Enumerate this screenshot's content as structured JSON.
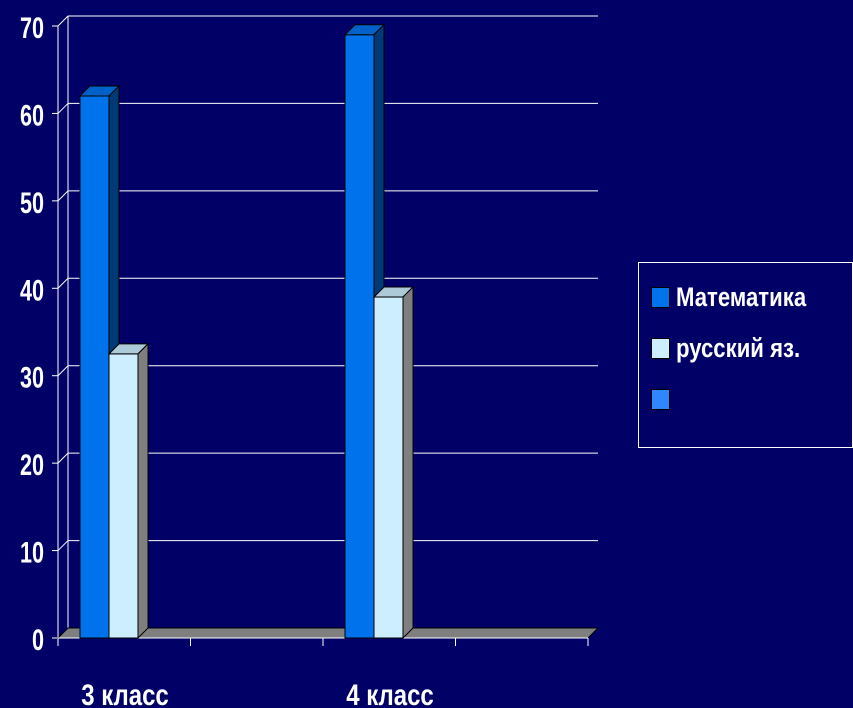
{
  "chart_data": {
    "type": "bar",
    "title": "",
    "xlabel": "",
    "ylabel": "",
    "categories": [
      "3 класс",
      "4 класс"
    ],
    "series": [
      {
        "name": "Математика",
        "values": [
          62,
          69
        ],
        "color": "#0073ec"
      },
      {
        "name": "русский яз.",
        "values": [
          32.5,
          39
        ],
        "color": "#cceeff"
      },
      {
        "name": "",
        "values": [
          0,
          0
        ],
        "color": "#2f86ff"
      }
    ],
    "ylim": [
      0,
      70
    ],
    "yticks": [
      "0",
      "10",
      "20",
      "30",
      "40",
      "50",
      "60",
      "70"
    ],
    "grid": true,
    "legend_position": "right"
  }
}
